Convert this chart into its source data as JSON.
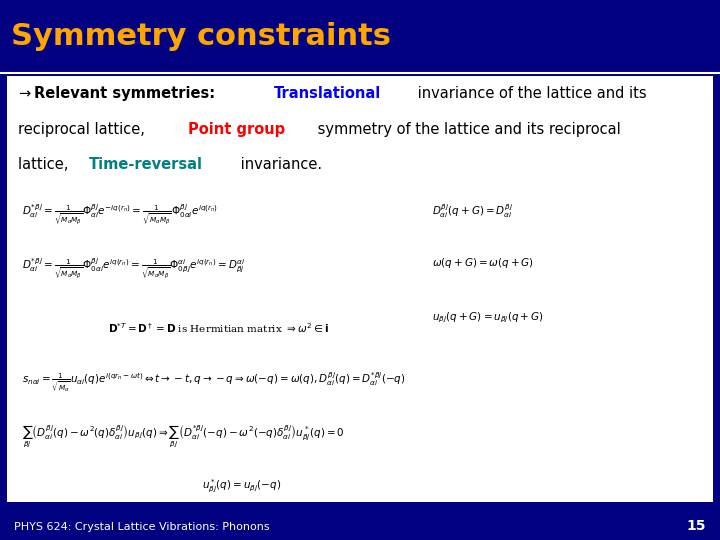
{
  "title": "Symmetry constraints",
  "title_color": "#FFA500",
  "header_bg": "#000080",
  "content_bg": "#FFFFFF",
  "slide_bg": "#000080",
  "footer_text": "PHYS 624: Crystal Lattice Vibrations: Phonons",
  "footer_number": "15",
  "footer_color": "#000080",
  "separator_color": "#FFFFFF",
  "text_color": "#000000",
  "arrow_color": "#000000",
  "highlight_blue": "#0000FF",
  "highlight_red": "#FF0000",
  "highlight_teal": "#008080",
  "content_lines": [
    {
      "parts": [
        {
          "text": "→",
          "color": "#000000",
          "bold": false,
          "italic": false
        },
        {
          "text": "Relevant symmetries: ",
          "color": "#000000",
          "bold": true,
          "italic": false
        },
        {
          "text": "Translational",
          "color": "#0000FF",
          "bold": true,
          "italic": false
        },
        {
          "text": " invariance of the lattice and its",
          "color": "#000000",
          "bold": false,
          "italic": false
        }
      ]
    },
    {
      "parts": [
        {
          "text": "reciprocal lattice, ",
          "color": "#000000",
          "bold": false,
          "italic": false
        },
        {
          "text": "Point group",
          "color": "#FF0000",
          "bold": true,
          "italic": false
        },
        {
          "text": " symmetry of the lattice and its reciprocal",
          "color": "#000000",
          "bold": false,
          "italic": false
        }
      ]
    },
    {
      "parts": [
        {
          "text": "lattice, ",
          "color": "#000000",
          "bold": false,
          "italic": false
        },
        {
          "text": "Time-reversal",
          "color": "#008080",
          "bold": true,
          "italic": false
        },
        {
          "text": " invariance.",
          "color": "#000000",
          "bold": false,
          "italic": false
        }
      ]
    }
  ],
  "equations_image": true,
  "title_fontsize": 22,
  "body_fontsize": 11,
  "footer_fontsize": 8
}
